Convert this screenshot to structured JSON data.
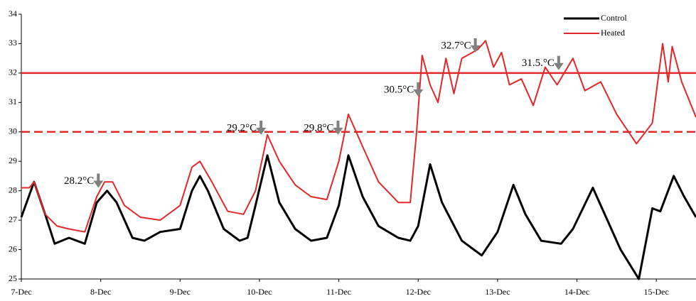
{
  "chart_data": {
    "type": "line",
    "xlim": [
      0,
      8.5
    ],
    "xticks": [
      {
        "value": 0,
        "label": "7-Dec"
      },
      {
        "value": 1,
        "label": "8-Dec"
      },
      {
        "value": 2,
        "label": "9-Dec"
      },
      {
        "value": 3,
        "label": "10-Dec"
      },
      {
        "value": 4,
        "label": "11-Dec"
      },
      {
        "value": 5,
        "label": "12-Dec"
      },
      {
        "value": 6,
        "label": "13-Dec"
      },
      {
        "value": 7,
        "label": "14-Dec"
      },
      {
        "value": 8,
        "label": "15-Dec"
      }
    ],
    "ylim": [
      25,
      34
    ],
    "yticks": [
      25,
      26,
      27,
      28,
      29,
      30,
      31,
      32,
      33,
      34
    ],
    "legend": "top-right",
    "series": [
      {
        "name": "Control",
        "color": "#000000",
        "x": [
          0,
          0.16,
          0.3,
          0.42,
          0.6,
          0.8,
          0.95,
          1.08,
          1.2,
          1.4,
          1.55,
          1.75,
          2.0,
          2.15,
          2.25,
          2.35,
          2.55,
          2.75,
          2.85,
          2.95,
          3.1,
          3.25,
          3.45,
          3.65,
          3.85,
          4.0,
          4.12,
          4.3,
          4.5,
          4.75,
          4.9,
          5.0,
          5.15,
          5.3,
          5.55,
          5.8,
          6.0,
          6.2,
          6.35,
          6.55,
          6.8,
          6.95,
          7.2,
          7.35,
          7.55,
          7.78,
          7.95,
          8.05,
          8.22,
          8.35,
          8.5
        ],
        "values": [
          27.1,
          28.3,
          27.2,
          26.2,
          26.4,
          26.2,
          27.6,
          28.0,
          27.6,
          26.4,
          26.3,
          26.6,
          26.7,
          28.0,
          28.5,
          28.0,
          26.7,
          26.3,
          26.4,
          27.5,
          29.2,
          27.6,
          26.7,
          26.3,
          26.4,
          27.5,
          29.2,
          27.8,
          26.8,
          26.4,
          26.3,
          26.8,
          28.9,
          27.6,
          26.3,
          25.8,
          26.6,
          28.2,
          27.2,
          26.3,
          26.2,
          26.7,
          28.1,
          27.2,
          26.0,
          25.0,
          27.4,
          27.3,
          28.5,
          27.8,
          27.1
        ]
      },
      {
        "name": "Heated",
        "color": "#e0282a",
        "x": [
          0,
          0.1,
          0.16,
          0.3,
          0.45,
          0.6,
          0.8,
          0.95,
          1.05,
          1.15,
          1.3,
          1.5,
          1.75,
          2.0,
          2.15,
          2.25,
          2.4,
          2.6,
          2.8,
          2.95,
          3.1,
          3.25,
          3.45,
          3.65,
          3.85,
          4.0,
          4.12,
          4.3,
          4.5,
          4.75,
          4.9,
          4.98,
          5.05,
          5.15,
          5.25,
          5.35,
          5.45,
          5.55,
          5.75,
          5.85,
          5.95,
          6.05,
          6.15,
          6.3,
          6.45,
          6.6,
          6.75,
          6.95,
          7.1,
          7.3,
          7.5,
          7.75,
          7.95,
          8.08,
          8.15,
          8.2,
          8.32,
          8.5
        ],
        "values": [
          28.1,
          28.1,
          28.3,
          27.2,
          26.8,
          26.7,
          26.6,
          27.8,
          28.3,
          28.3,
          27.5,
          27.1,
          27.0,
          27.5,
          28.8,
          29.0,
          28.3,
          27.3,
          27.2,
          28.0,
          29.9,
          29.0,
          28.2,
          27.8,
          27.7,
          29.0,
          30.6,
          29.5,
          28.3,
          27.6,
          27.6,
          30.0,
          32.6,
          31.6,
          31.0,
          32.5,
          31.3,
          32.5,
          32.8,
          33.1,
          32.2,
          32.7,
          31.6,
          31.8,
          30.9,
          32.2,
          31.6,
          32.5,
          31.4,
          31.7,
          30.6,
          29.6,
          30.3,
          33.0,
          31.7,
          32.9,
          31.7,
          30.5
        ]
      }
    ],
    "reference_lines": [
      {
        "value": 32,
        "color": "#e0282a",
        "style": "solid"
      },
      {
        "value": 30,
        "color": "#e0282a",
        "style": "dashed"
      }
    ],
    "annotations": [
      {
        "text": "28.2°C",
        "x": 0.97,
        "y": 28.1
      },
      {
        "text": "29.2°C",
        "x": 3.02,
        "y": 29.9
      },
      {
        "text": "29.8°C",
        "x": 3.99,
        "y": 29.9
      },
      {
        "text": "30.5°C",
        "x": 5.0,
        "y": 31.2
      },
      {
        "text": "32.7°C",
        "x": 5.72,
        "y": 32.7
      },
      {
        "text": "31.5.°C",
        "x": 6.77,
        "y": 32.1
      }
    ]
  }
}
